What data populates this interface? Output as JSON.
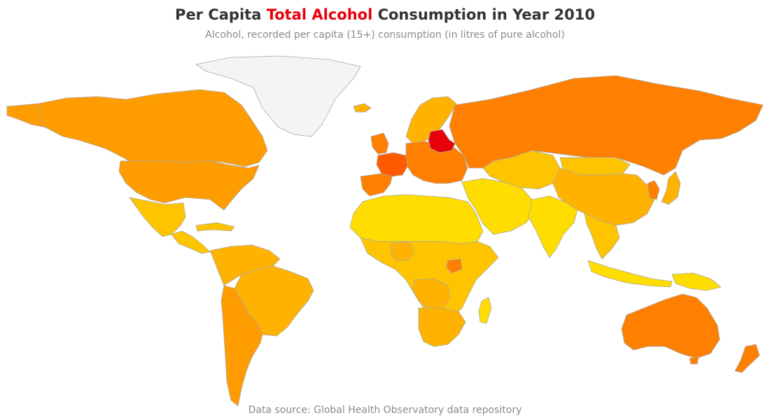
{
  "header": {
    "title_before": "Per Capita ",
    "title_highlight": "Total Alcohol",
    "title_after": " Consumption in Year 2010",
    "subtitle": "Alcohol, recorded per capita (15+) consumption (in litres of pure alcohol)"
  },
  "footer": {
    "source": "Data source: Global Health Observatory data repository"
  },
  "colors": {
    "highlight": "#e8000b",
    "no_data": "#f4f4f4",
    "border": "#a8a8a8",
    "scale": [
      "#ffdd00",
      "#ffc400",
      "#ffb300",
      "#ff9c00",
      "#ff7f00",
      "#ff5a00",
      "#e8000b"
    ]
  },
  "map": {
    "regions": [
      {
        "name": "greenland",
        "color": "#f4f4f4"
      },
      {
        "name": "canada",
        "color": "#ff9c00"
      },
      {
        "name": "alaska",
        "color": "#ff9c00"
      },
      {
        "name": "united-states",
        "color": "#ff9c00"
      },
      {
        "name": "mexico",
        "color": "#ffc400"
      },
      {
        "name": "central-america",
        "color": "#ffc400"
      },
      {
        "name": "caribbean",
        "color": "#ffc400"
      },
      {
        "name": "northern-south-america",
        "color": "#ffb300"
      },
      {
        "name": "brazil",
        "color": "#ffb300"
      },
      {
        "name": "argentina-chile",
        "color": "#ff9c00"
      },
      {
        "name": "iberia",
        "color": "#ff7f00"
      },
      {
        "name": "france",
        "color": "#ff5a00"
      },
      {
        "name": "british-isles",
        "color": "#ff7f00"
      },
      {
        "name": "scandinavia",
        "color": "#ffb300"
      },
      {
        "name": "central-europe",
        "color": "#ff7f00"
      },
      {
        "name": "belarus-baltics",
        "color": "#e8000b"
      },
      {
        "name": "russia",
        "color": "#ff7f00"
      },
      {
        "name": "north-africa",
        "color": "#ffdd00"
      },
      {
        "name": "sub-saharan-africa",
        "color": "#ffc400"
      },
      {
        "name": "nigeria",
        "color": "#ffb300"
      },
      {
        "name": "uganda",
        "color": "#ff7f00"
      },
      {
        "name": "angola-drc",
        "color": "#ffb300"
      },
      {
        "name": "southern-africa",
        "color": "#ffb300"
      },
      {
        "name": "madagascar",
        "color": "#ffdd00"
      },
      {
        "name": "middle-east",
        "color": "#ffdd00"
      },
      {
        "name": "central-asia",
        "color": "#ffc400"
      },
      {
        "name": "china",
        "color": "#ffb300"
      },
      {
        "name": "mongolia",
        "color": "#ffc400"
      },
      {
        "name": "india",
        "color": "#ffdd00"
      },
      {
        "name": "southeast-asia",
        "color": "#ffc400"
      },
      {
        "name": "korea",
        "color": "#ff7f00"
      },
      {
        "name": "japan",
        "color": "#ffb300"
      },
      {
        "name": "indonesia",
        "color": "#ffdd00"
      },
      {
        "name": "new-guinea",
        "color": "#ffdd00"
      },
      {
        "name": "australia",
        "color": "#ff7f00"
      },
      {
        "name": "tasmania",
        "color": "#ff7f00"
      },
      {
        "name": "new-zealand",
        "color": "#ff7f00"
      },
      {
        "name": "iceland",
        "color": "#ffb300"
      }
    ]
  }
}
